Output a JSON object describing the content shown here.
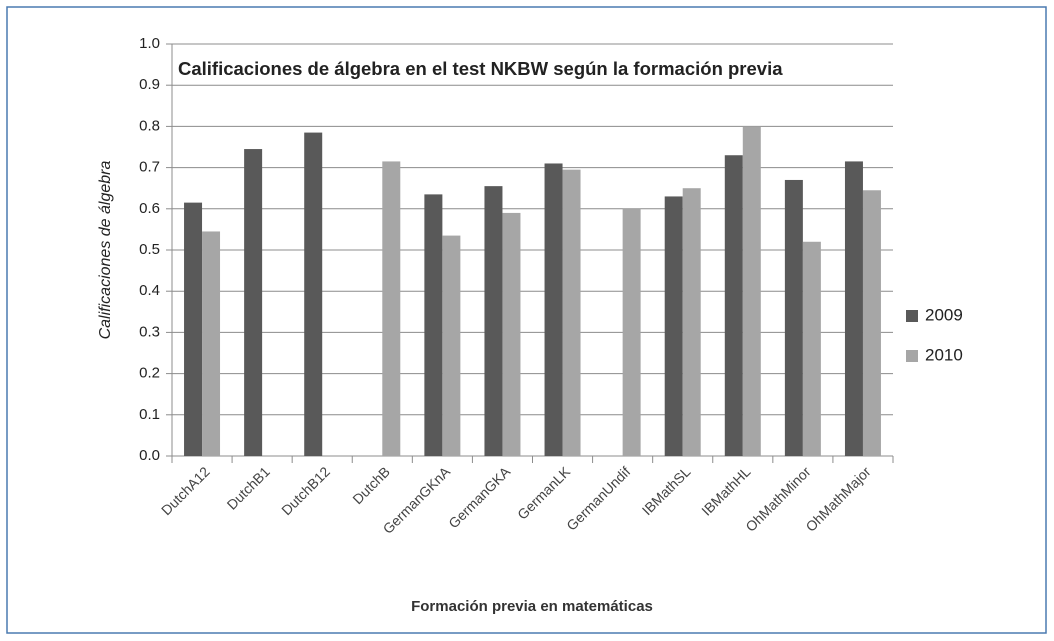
{
  "chart_data": {
    "type": "bar",
    "title": "Calificaciones de álgebra en el test NKBW según la formación previa",
    "x_label": "Formación previa en matemáticas",
    "y_label": "Calificaciones de álgebra",
    "categories": [
      "DutchA12",
      "DutchB1",
      "DutchB12",
      "DutchB",
      "GermanGKnA",
      "GermanGKA",
      "GermanLK",
      "GermanUndif",
      "IBMathSL",
      "IBMathHL",
      "OhMathMinor",
      "OhMathMajor"
    ],
    "series": [
      {
        "name": "2009",
        "color": "#595959",
        "values": [
          0.615,
          0.745,
          0.785,
          null,
          0.635,
          0.655,
          0.71,
          null,
          0.63,
          0.73,
          0.67,
          0.715
        ]
      },
      {
        "name": "2010",
        "color": "#a6a6a6",
        "values": [
          0.545,
          null,
          null,
          0.715,
          0.535,
          0.59,
          0.695,
          0.6,
          0.65,
          0.8,
          0.52,
          0.645
        ]
      }
    ],
    "ylim": [
      0,
      1
    ],
    "yticks": [
      {
        "value": 0,
        "label": "0.0"
      },
      0.1,
      0.2,
      0.3,
      0.4,
      0.5,
      0.6,
      0.7,
      0.8,
      0.9,
      {
        "value": 1,
        "label": "1.0"
      }
    ],
    "grid": true,
    "legend": "right"
  }
}
